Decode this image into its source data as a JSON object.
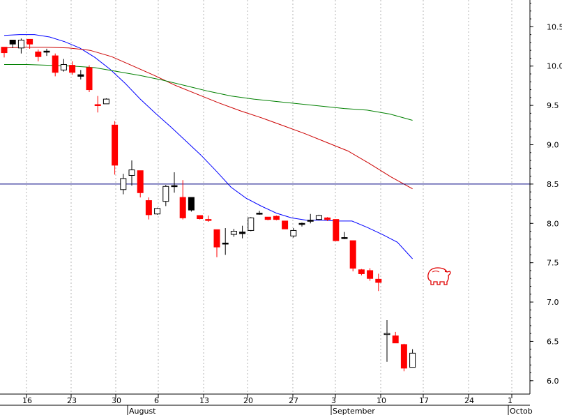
{
  "chart_data": {
    "type": "candlestick",
    "y_axis": {
      "min": 5.83,
      "max": 10.84,
      "ticks": [
        6.0,
        6.5,
        7.0,
        7.5,
        8.0,
        8.5,
        9.0,
        9.5,
        10.0,
        10.5
      ],
      "tick_labels": [
        "6.0",
        "6.5",
        "7.0",
        "7.5",
        "8.0",
        "8.5",
        "9.0",
        "9.5",
        "10.0",
        "10.5"
      ],
      "position": "right",
      "grid": true
    },
    "x_axis": {
      "day_ticks": [
        "16",
        "23",
        "30",
        "6",
        "13",
        "20",
        "27",
        "3",
        "10",
        "17",
        "24",
        "1"
      ],
      "month_labels": [
        "August",
        "September",
        "Octob"
      ]
    },
    "candles": [
      {
        "o": 10.17,
        "h": 10.24,
        "l": 10.11,
        "c": 10.24,
        "color": "red"
      },
      {
        "o": 10.28,
        "h": 10.33,
        "l": 10.23,
        "c": 10.33,
        "color": "black"
      },
      {
        "o": 10.23,
        "h": 10.35,
        "l": 10.16,
        "c": 10.33,
        "color": "white"
      },
      {
        "o": 10.28,
        "h": 10.34,
        "l": 10.22,
        "c": 10.34,
        "color": "red"
      },
      {
        "o": 10.18,
        "h": 10.21,
        "l": 10.06,
        "c": 10.12,
        "color": "red"
      },
      {
        "o": 10.19,
        "h": 10.22,
        "l": 10.13,
        "c": 10.18,
        "color": "black"
      },
      {
        "o": 10.13,
        "h": 10.16,
        "l": 9.87,
        "c": 9.92,
        "color": "red"
      },
      {
        "o": 10.02,
        "h": 10.09,
        "l": 9.93,
        "c": 9.95,
        "color": "white"
      },
      {
        "o": 10.01,
        "h": 10.06,
        "l": 9.89,
        "c": 9.92,
        "color": "red"
      },
      {
        "o": 9.89,
        "h": 9.95,
        "l": 9.83,
        "c": 9.87,
        "color": "black"
      },
      {
        "o": 9.98,
        "h": 10.01,
        "l": 9.67,
        "c": 9.7,
        "color": "red"
      },
      {
        "o": 9.5,
        "h": 9.62,
        "l": 9.41,
        "c": 9.51,
        "color": "red"
      },
      {
        "o": 9.52,
        "h": 9.59,
        "l": 9.52,
        "c": 9.58,
        "color": "white"
      },
      {
        "o": 9.25,
        "h": 9.3,
        "l": 8.62,
        "c": 8.74,
        "color": "red"
      },
      {
        "o": 8.43,
        "h": 8.63,
        "l": 8.37,
        "c": 8.57,
        "color": "white"
      },
      {
        "o": 8.61,
        "h": 8.8,
        "l": 8.48,
        "c": 8.68,
        "color": "white"
      },
      {
        "o": 8.67,
        "h": 8.67,
        "l": 8.33,
        "c": 8.39,
        "color": "red"
      },
      {
        "o": 8.29,
        "h": 8.33,
        "l": 8.05,
        "c": 8.11,
        "color": "red"
      },
      {
        "o": 8.12,
        "h": 8.2,
        "l": 8.11,
        "c": 8.19,
        "color": "white"
      },
      {
        "o": 8.28,
        "h": 8.49,
        "l": 8.22,
        "c": 8.47,
        "color": "white"
      },
      {
        "o": 8.48,
        "h": 8.65,
        "l": 8.39,
        "c": 8.48,
        "color": "black"
      },
      {
        "o": 8.33,
        "h": 8.55,
        "l": 8.05,
        "c": 8.07,
        "color": "red"
      },
      {
        "o": 8.33,
        "h": 8.33,
        "l": 8.15,
        "c": 8.17,
        "color": "black"
      },
      {
        "o": 8.1,
        "h": 8.1,
        "l": 8.05,
        "c": 8.06,
        "color": "red"
      },
      {
        "o": 8.05,
        "h": 8.1,
        "l": 8.02,
        "c": 8.04,
        "color": "red"
      },
      {
        "o": 7.92,
        "h": 7.92,
        "l": 7.57,
        "c": 7.7,
        "color": "red"
      },
      {
        "o": 7.75,
        "h": 7.94,
        "l": 7.6,
        "c": 7.74,
        "color": "black"
      },
      {
        "o": 7.86,
        "h": 7.93,
        "l": 7.83,
        "c": 7.9,
        "color": "white"
      },
      {
        "o": 7.89,
        "h": 7.97,
        "l": 7.81,
        "c": 7.87,
        "color": "black"
      },
      {
        "o": 7.91,
        "h": 8.08,
        "l": 7.9,
        "c": 8.07,
        "color": "white"
      },
      {
        "o": 8.13,
        "h": 8.16,
        "l": 8.11,
        "c": 8.13,
        "color": "black"
      },
      {
        "o": 8.05,
        "h": 8.08,
        "l": 8.04,
        "c": 8.08,
        "color": "red"
      },
      {
        "o": 8.09,
        "h": 8.1,
        "l": 8.04,
        "c": 8.05,
        "color": "red"
      },
      {
        "o": 8.03,
        "h": 8.03,
        "l": 7.93,
        "c": 7.93,
        "color": "red"
      },
      {
        "o": 7.84,
        "h": 7.94,
        "l": 7.82,
        "c": 7.91,
        "color": "white"
      },
      {
        "o": 7.99,
        "h": 8.01,
        "l": 7.96,
        "c": 8.0,
        "color": "black"
      },
      {
        "o": 8.03,
        "h": 8.12,
        "l": 8.0,
        "c": 8.04,
        "color": "black"
      },
      {
        "o": 8.05,
        "h": 8.11,
        "l": 8.04,
        "c": 8.1,
        "color": "white"
      },
      {
        "o": 8.07,
        "h": 8.08,
        "l": 8.03,
        "c": 8.05,
        "color": "red"
      },
      {
        "o": 8.05,
        "h": 8.05,
        "l": 7.78,
        "c": 7.78,
        "color": "red"
      },
      {
        "o": 7.82,
        "h": 7.89,
        "l": 7.8,
        "c": 7.81,
        "color": "black"
      },
      {
        "o": 7.78,
        "h": 7.78,
        "l": 7.39,
        "c": 7.43,
        "color": "red"
      },
      {
        "o": 7.41,
        "h": 7.42,
        "l": 7.34,
        "c": 7.36,
        "color": "red"
      },
      {
        "o": 7.4,
        "h": 7.43,
        "l": 7.27,
        "c": 7.3,
        "color": "red"
      },
      {
        "o": 7.29,
        "h": 7.36,
        "l": 7.14,
        "c": 7.25,
        "color": "red"
      },
      {
        "o": 6.6,
        "h": 6.77,
        "l": 6.24,
        "c": 6.6,
        "color": "white"
      },
      {
        "o": 6.57,
        "h": 6.62,
        "l": 6.48,
        "c": 6.48,
        "color": "red"
      },
      {
        "o": 6.46,
        "h": 6.47,
        "l": 6.12,
        "c": 6.16,
        "color": "red"
      },
      {
        "o": 6.17,
        "h": 6.4,
        "l": 6.17,
        "c": 6.35,
        "color": "white"
      }
    ],
    "moving_averages": [
      {
        "color": "#0000ff",
        "values": [
          10.39,
          10.4,
          10.4,
          10.37,
          10.31,
          10.23,
          10.11,
          9.96,
          9.78,
          9.58,
          9.4,
          9.23,
          9.05,
          8.87,
          8.67,
          8.46,
          8.32,
          8.22,
          8.13,
          8.07,
          8.04,
          8.04,
          8.03,
          8.03,
          7.95,
          7.86,
          7.76,
          7.55
        ]
      },
      {
        "color": "#cc0000",
        "values": [
          10.23,
          10.24,
          10.24,
          10.23,
          10.2,
          10.12,
          10.0,
          9.88,
          9.75,
          9.64,
          9.53,
          9.43,
          9.34,
          9.24,
          9.14,
          9.03,
          8.92,
          8.76,
          8.59,
          8.44
        ]
      },
      {
        "color": "#008000",
        "values": [
          10.02,
          10.02,
          10.01,
          10.0,
          9.98,
          9.93,
          9.88,
          9.82,
          9.75,
          9.68,
          9.62,
          9.58,
          9.55,
          9.52,
          9.49,
          9.46,
          9.44,
          9.39,
          9.31
        ]
      }
    ],
    "reference_line": {
      "value": 8.5,
      "color": "#000080"
    }
  }
}
